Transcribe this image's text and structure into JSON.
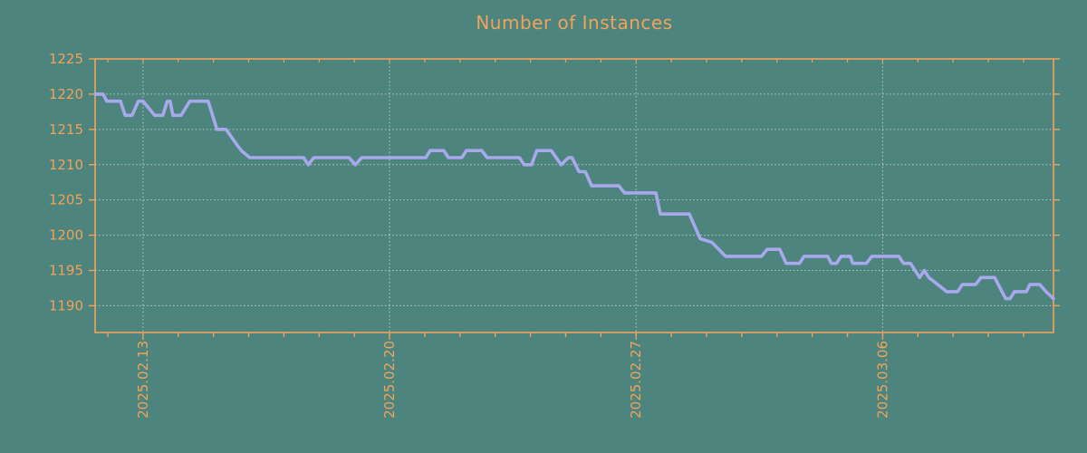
{
  "chart_data": {
    "type": "line",
    "title": "Number of Instances",
    "colors": {
      "background": "#4e847e",
      "axis": "#efa35b",
      "text": "#efa35b",
      "grid": "#c9d2cf",
      "line": "#a8a8ec"
    },
    "x_axis": {
      "tick_labels": [
        "2025.02.13",
        "2025.02.20",
        "2025.02.27",
        "2025.03.06"
      ],
      "tick_days": [
        0,
        7,
        14,
        21
      ],
      "minor_tick_every_days": 1,
      "range_days": [
        -1.36,
        25.85
      ]
    },
    "y_axis": {
      "ticks": [
        1190,
        1195,
        1200,
        1205,
        1210,
        1215,
        1220,
        1225
      ],
      "range": [
        1186.2,
        1225
      ]
    },
    "legend": "none",
    "grid": "dashed, horizontal at every 5 units, vertical at weekly date ticks",
    "series": [
      {
        "name": "instances",
        "points": [
          [
            -1.36,
            1220
          ],
          [
            -1.13,
            1220
          ],
          [
            -1.03,
            1219
          ],
          [
            -0.64,
            1219
          ],
          [
            -0.51,
            1217
          ],
          [
            -0.31,
            1217
          ],
          [
            -0.13,
            1219
          ],
          [
            0.0,
            1219
          ],
          [
            0.33,
            1217
          ],
          [
            0.56,
            1217
          ],
          [
            0.69,
            1219
          ],
          [
            0.77,
            1219
          ],
          [
            0.85,
            1217
          ],
          [
            1.08,
            1217
          ],
          [
            1.33,
            1219
          ],
          [
            1.85,
            1219
          ],
          [
            2.1,
            1215
          ],
          [
            2.36,
            1215
          ],
          [
            2.64,
            1213
          ],
          [
            2.79,
            1212
          ],
          [
            3.03,
            1211
          ],
          [
            4.56,
            1211
          ],
          [
            4.69,
            1210
          ],
          [
            4.85,
            1211
          ],
          [
            5.85,
            1211
          ],
          [
            6.03,
            1210
          ],
          [
            6.21,
            1211
          ],
          [
            8.03,
            1211
          ],
          [
            8.15,
            1212
          ],
          [
            8.54,
            1212
          ],
          [
            8.67,
            1211
          ],
          [
            9.05,
            1211
          ],
          [
            9.18,
            1212
          ],
          [
            9.62,
            1212
          ],
          [
            9.77,
            1211
          ],
          [
            10.69,
            1211
          ],
          [
            10.82,
            1210
          ],
          [
            11.03,
            1210
          ],
          [
            11.18,
            1212
          ],
          [
            11.59,
            1212
          ],
          [
            11.87,
            1210
          ],
          [
            12.08,
            1211
          ],
          [
            12.18,
            1211
          ],
          [
            12.38,
            1209
          ],
          [
            12.56,
            1209
          ],
          [
            12.74,
            1207
          ],
          [
            13.51,
            1207
          ],
          [
            13.67,
            1206
          ],
          [
            14.56,
            1206
          ],
          [
            14.69,
            1203
          ],
          [
            15.51,
            1203
          ],
          [
            15.82,
            1199.5
          ],
          [
            16.15,
            1199
          ],
          [
            16.54,
            1197
          ],
          [
            17.56,
            1197
          ],
          [
            17.72,
            1198
          ],
          [
            18.08,
            1198
          ],
          [
            18.26,
            1196
          ],
          [
            18.64,
            1196
          ],
          [
            18.77,
            1197
          ],
          [
            19.44,
            1197
          ],
          [
            19.54,
            1196
          ],
          [
            19.69,
            1196
          ],
          [
            19.82,
            1197
          ],
          [
            20.08,
            1197
          ],
          [
            20.15,
            1196
          ],
          [
            20.54,
            1196
          ],
          [
            20.69,
            1197
          ],
          [
            21.46,
            1197
          ],
          [
            21.59,
            1196
          ],
          [
            21.79,
            1196
          ],
          [
            22.05,
            1194
          ],
          [
            22.18,
            1195
          ],
          [
            22.31,
            1194
          ],
          [
            22.82,
            1192
          ],
          [
            23.13,
            1192
          ],
          [
            23.26,
            1193
          ],
          [
            23.64,
            1193
          ],
          [
            23.79,
            1194
          ],
          [
            24.18,
            1194
          ],
          [
            24.49,
            1191
          ],
          [
            24.62,
            1191
          ],
          [
            24.74,
            1192
          ],
          [
            25.08,
            1192
          ],
          [
            25.18,
            1193
          ],
          [
            25.46,
            1193
          ],
          [
            25.64,
            1192
          ],
          [
            25.85,
            1191
          ]
        ]
      }
    ]
  }
}
